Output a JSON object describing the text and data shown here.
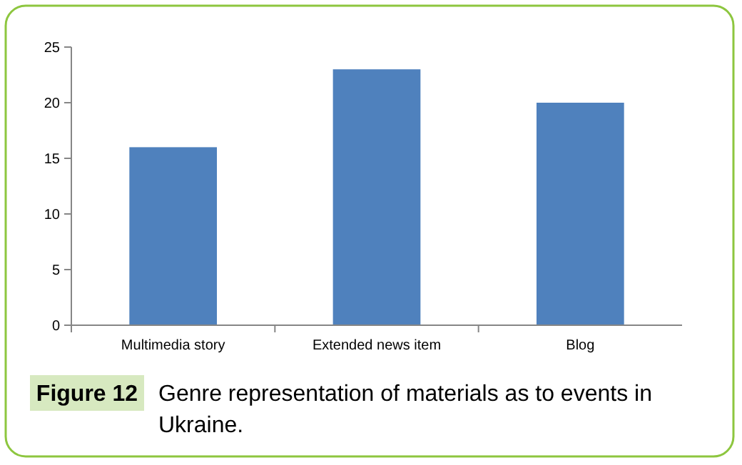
{
  "chart_data": {
    "type": "bar",
    "categories": [
      "Multimedia story",
      "Extended news item",
      "Blog"
    ],
    "values": [
      16,
      23,
      20
    ],
    "color": "#4f81bd",
    "ylim": [
      0,
      25
    ],
    "yticks": [
      0,
      5,
      10,
      15,
      20,
      25
    ],
    "grid": false,
    "annotations": [
      "Figure 12",
      "Genre representation of materials as to events in Ukraine."
    ]
  }
}
